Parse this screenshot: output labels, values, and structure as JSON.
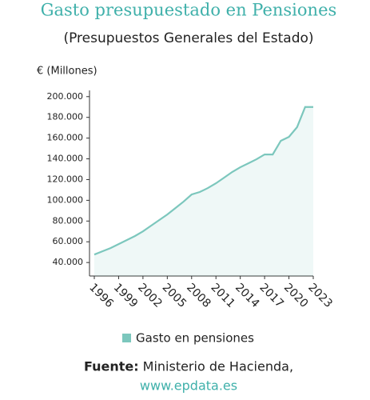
{
  "chart_data": {
    "type": "line",
    "title": "Gasto presupuestado en Pensiones",
    "subtitle": "(Presupuestos Generales del Estado)",
    "y_label": "€ (Millones)",
    "x": [
      1996,
      1997,
      1998,
      1999,
      2000,
      2001,
      2002,
      2003,
      2004,
      2005,
      2006,
      2007,
      2008,
      2009,
      2010,
      2011,
      2012,
      2013,
      2014,
      2015,
      2016,
      2017,
      2018,
      2019,
      2020,
      2021,
      2022,
      2023
    ],
    "series": [
      {
        "name": "Gasto en pensiones",
        "color": "#7cc7bd",
        "values": [
          47700,
          50800,
          53900,
          57800,
          61600,
          65500,
          70100,
          75500,
          80900,
          86300,
          92500,
          98700,
          105600,
          108000,
          111800,
          116400,
          121800,
          127300,
          131900,
          135700,
          139600,
          144200,
          144200,
          157400,
          161200,
          170500,
          190000,
          190000
        ]
      }
    ],
    "xlim": [
      1996,
      2023
    ],
    "xticks": [
      1996,
      1999,
      2002,
      2005,
      2008,
      2011,
      2014,
      2017,
      2020,
      2023
    ],
    "ylim": [
      27000,
      206000
    ],
    "yticks": [
      {
        "value": 40000,
        "label": "40.000"
      },
      {
        "value": 60000,
        "label": "60.000"
      },
      {
        "value": 80000,
        "label": "80.000"
      },
      {
        "value": 100000,
        "label": "100.000"
      },
      {
        "value": 120000,
        "label": "120.000"
      },
      {
        "value": 140000,
        "label": "140.000"
      },
      {
        "value": 160000,
        "label": "160.000"
      },
      {
        "value": 180000,
        "label": "180.000"
      },
      {
        "value": 200000,
        "label": "200.000"
      }
    ],
    "area": true,
    "legend": "bottom",
    "source_label": "Fuente:",
    "source": "Ministerio de Hacienda,",
    "source_url": "www.epdata.es"
  }
}
